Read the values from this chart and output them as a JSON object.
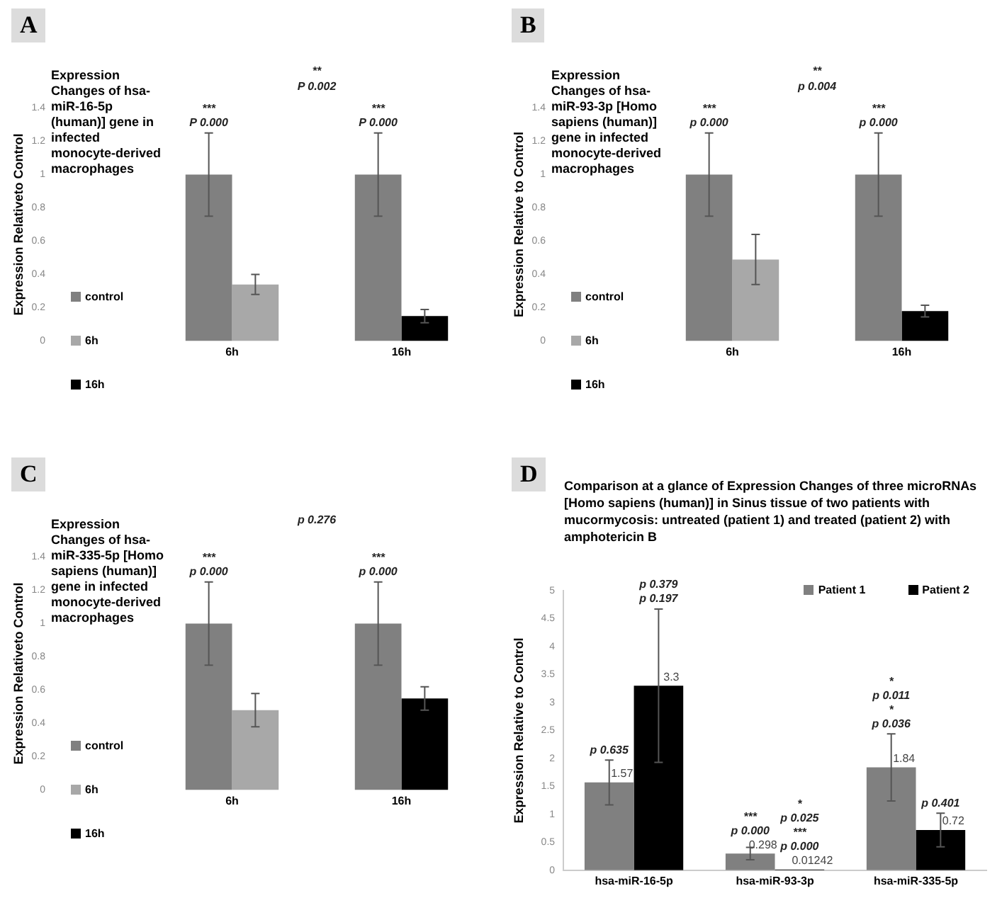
{
  "chart_data": [
    {
      "type": "bar",
      "title": "Expression  Changes of hsa-miR-16-5p (human)] gene in infected monocyte-derived macrophages",
      "ylabel": "Expression Relativeto Control",
      "categories": [
        "6h",
        "16h"
      ],
      "series": [
        {
          "name": "control",
          "color": "#808080",
          "values": [
            1,
            1
          ],
          "errors": [
            0.25,
            0.25
          ]
        },
        {
          "name": "6h",
          "color": "#a8a8a8",
          "values": [
            0.34,
            null
          ],
          "errors": [
            0.06,
            null
          ]
        },
        {
          "name": "16h",
          "color": "#000000",
          "values": [
            null,
            0.15
          ],
          "errors": [
            null,
            0.04
          ]
        }
      ],
      "ylim": [
        0,
        1.4
      ],
      "yticks": [
        0,
        0.2,
        0.4,
        0.6,
        0.8,
        1,
        1.2,
        1.4
      ],
      "legend": "left",
      "annotations": [
        "A",
        "**",
        "P 0.002",
        "***",
        "P 0.000",
        "***",
        "P 0.000"
      ]
    },
    {
      "type": "bar",
      "title": "Expression  Changes of hsa-miR-93-3p [Homo sapiens (human)] gene in infected monocyte-derived macrophages",
      "ylabel": "Expression Relative to Control",
      "categories": [
        "6h",
        "16h"
      ],
      "series": [
        {
          "name": "control",
          "color": "#808080",
          "values": [
            1,
            1
          ],
          "errors": [
            0.25,
            0.25
          ]
        },
        {
          "name": "6h",
          "color": "#a8a8a8",
          "values": [
            0.49,
            null
          ],
          "errors": [
            0.15,
            null
          ]
        },
        {
          "name": "16h",
          "color": "#000000",
          "values": [
            null,
            0.18
          ],
          "errors": [
            null,
            0.035
          ]
        }
      ],
      "ylim": [
        0,
        1.4
      ],
      "yticks": [
        0,
        0.2,
        0.4,
        0.6,
        0.8,
        1,
        1.2,
        1.4
      ],
      "legend": "left",
      "annotations": [
        "B",
        "**",
        "p 0.004",
        "***",
        "p 0.000",
        "***",
        "p 0.000"
      ]
    },
    {
      "type": "bar",
      "title": "Expression  Changes of hsa-miR-335-5p [Homo sapiens (human)] gene in infected monocyte-derived macrophages",
      "ylabel": "Expression Relativeto Control",
      "categories": [
        "6h",
        "16h"
      ],
      "series": [
        {
          "name": "control",
          "color": "#808080",
          "values": [
            1,
            1
          ],
          "errors": [
            0.25,
            0.25
          ]
        },
        {
          "name": "6h",
          "color": "#a8a8a8",
          "values": [
            0.48,
            null
          ],
          "errors": [
            0.1,
            null
          ]
        },
        {
          "name": "16h",
          "color": "#000000",
          "values": [
            null,
            0.55
          ],
          "errors": [
            null,
            0.07
          ]
        }
      ],
      "ylim": [
        0,
        1.4
      ],
      "yticks": [
        0,
        0.2,
        0.4,
        0.6,
        0.8,
        1,
        1.2,
        1.4
      ],
      "legend": "left",
      "annotations": [
        "C",
        "p 0.276",
        "***",
        "p 0.000",
        "***",
        "p 0.000"
      ]
    },
    {
      "type": "bar",
      "title": "Comparison at a glance of Expression Changes of three microRNAs [Homo sapiens (human)] in Sinus tissue of two patients with mucormycosis: untreated (patient 1) and treated (patient 2) with amphotericin B",
      "ylabel": "Expression Relative to Control",
      "categories": [
        "hsa-miR-16-5p",
        "hsa-miR-93-3p",
        "hsa-miR-335-5p"
      ],
      "series": [
        {
          "name": "Patient 1",
          "color": "#808080",
          "values": [
            1.57,
            0.298,
            1.84
          ],
          "errors": [
            0.4,
            0.11,
            0.6
          ]
        },
        {
          "name": "Patient 2",
          "color": "#000000",
          "values": [
            3.3,
            0.01242,
            0.72
          ],
          "errors": [
            1.37,
            null,
            0.3
          ]
        }
      ],
      "ylim": [
        0,
        5
      ],
      "yticks": [
        0,
        0.5,
        1,
        1.5,
        2,
        2.5,
        3,
        3.5,
        4,
        4.5,
        5
      ],
      "legend": "top right",
      "data_labels": true,
      "annotations": [
        "D",
        "p 0.635",
        "p 0.379",
        "p 0.197",
        "***",
        "p 0.000",
        "*",
        "p 0.025",
        "***",
        "p 0.000",
        "*",
        "p 0.011",
        "*",
        "p 0.036",
        "p 0.401"
      ]
    }
  ]
}
